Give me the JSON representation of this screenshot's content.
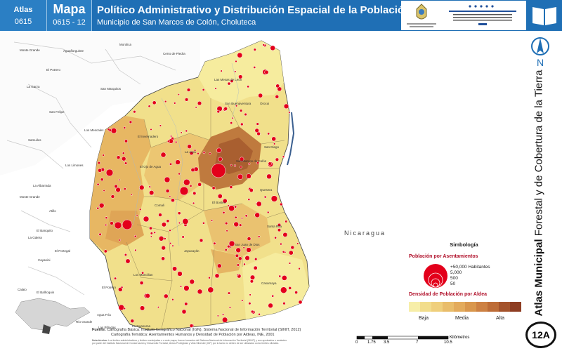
{
  "header": {
    "atlas_label": "Atlas",
    "atlas_number": "0615",
    "mapa_label": "Mapa",
    "mapa_number": "0615 - 12",
    "title": "Político Administrativo y Distribución Espacial de la Población",
    "subtitle": "Municipio de San Marcos de Colón, Choluteca",
    "logo1_caption": "GOBIERNO DE LA REPÚBLICA DE HONDURAS",
    "logo2_caption": "INSTITUTO NACIONAL DE CONSERVACIÓN Y DESARROLLO FORESTAL, ÁREAS PROTEGIDAS Y VIDA SILVESTRE ICF"
  },
  "side": {
    "title_bold": "Atlas Municipal",
    "title_rest": " Forestal y de Cobertura de la Tierra",
    "north_letter": "N",
    "page_number": "12A"
  },
  "map": {
    "country_label": "Nicaragua",
    "places": [
      {
        "name": "Monte Grande"
      },
      {
        "name": "Aguaflorguinte"
      },
      {
        "name": "Morolica"
      },
      {
        "name": "Cerro de Piedra"
      },
      {
        "name": "El Potrero"
      },
      {
        "name": "La Garza"
      },
      {
        "name": "San Marquitos"
      },
      {
        "name": "San Felipe"
      },
      {
        "name": "Los Mescales"
      },
      {
        "name": "Samuilos"
      },
      {
        "name": "Los Limones"
      },
      {
        "name": "La Albarrada"
      },
      {
        "name": "Monte Grande"
      },
      {
        "name": "Atillo"
      },
      {
        "name": "El Banquito"
      },
      {
        "name": "La Galera"
      },
      {
        "name": "Cayanini"
      },
      {
        "name": "Calaio"
      },
      {
        "name": "El Balñoquin"
      },
      {
        "name": "Las Mesas de León"
      },
      {
        "name": "Orocui"
      },
      {
        "name": "San Buenaventura"
      },
      {
        "name": "El Invernadero"
      },
      {
        "name": "La Joya"
      },
      {
        "name": "El Ojo de Agua"
      },
      {
        "name": "San Diego"
      },
      {
        "name": "Quesera"
      },
      {
        "name": "El Bosteo"
      },
      {
        "name": "Comali"
      },
      {
        "name": "San Marcos de Colón"
      },
      {
        "name": "Santa Rita"
      },
      {
        "name": "San Juan de Dios"
      },
      {
        "name": "Jayacayán"
      },
      {
        "name": "El Portegal"
      },
      {
        "name": "Los Mancillan"
      },
      {
        "name": "El Potrero"
      },
      {
        "name": "Agua Fría"
      },
      {
        "name": "La Guanuma"
      },
      {
        "name": "Las Piñadas"
      },
      {
        "name": "Casamaya"
      },
      {
        "name": "Río Grande"
      }
    ]
  },
  "legend": {
    "title": "Simbología",
    "population_title": "Población por Asentamientos",
    "population_values": [
      "+50,000 Habitantes",
      "5,000",
      "500",
      "50"
    ],
    "density_title": "Densidad de Población por Aldea",
    "density_low": "Baja",
    "density_mid": "Media",
    "density_high": "Alta",
    "ramp_colors": [
      "#f7eea8",
      "#f2dd8c",
      "#efcf7c",
      "#e9bd6b",
      "#e3ab5c",
      "#d9974d",
      "#cd8143",
      "#bd6c37",
      "#a4532c",
      "#8e3d22"
    ]
  },
  "footer": {
    "source_label": "Fuente:",
    "source_line1": "Cartografía Básica: Instituto Geográfico Nacional (IGN), Sistema Nacional de Información Territorial (SINIT, 2012)",
    "source_line2": "Cartografía Temática: Asentamientos Humanos y Densidad de Población por Aldeas, INE, 2001",
    "notes_label": "Nota técnica:",
    "notes_text": "Los límites administrativos y límites municipales o a este mapa, fueron tomados del Sistema Nacional de Información Territorial (SINIT) y son aprobados o avalados por parte del Instituto Nacional de Conservación y Desarrollo Forestal, Áreas Protegidas y Vida Silvestre (ICF) por lo tanto no deben de ser utilizados como límites oficiales.",
    "scale_ticks": [
      "0",
      "1.75",
      "3.5",
      "7",
      "10.5"
    ],
    "scale_unit": "Kilómetros"
  },
  "colors": {
    "header_blue": "#1f6fb5",
    "settlement_red": "#e3001b"
  }
}
